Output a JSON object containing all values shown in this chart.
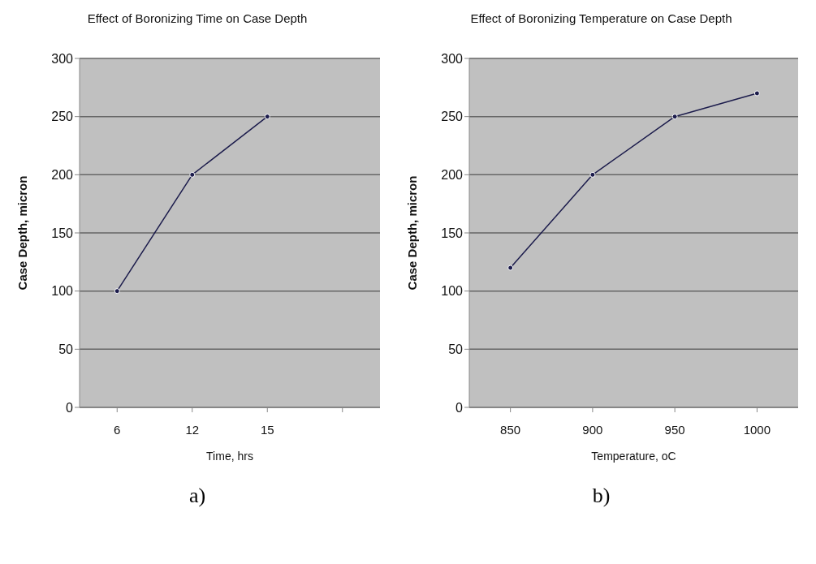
{
  "chart_data": [
    {
      "type": "line",
      "title": "Effect of Boronizing Time on Case Depth",
      "xlabel": "Time, hrs",
      "ylabel": "Case  Depth,  micron",
      "categories": [
        "6",
        "12",
        "15",
        null
      ],
      "values": [
        100,
        200,
        250,
        null
      ],
      "color": "#1c1c4c",
      "ylim": [
        0,
        300
      ],
      "yticks": [
        0,
        50,
        100,
        150,
        200,
        250,
        300
      ],
      "grid": "y",
      "marker": "circle",
      "annotations": [
        "a)"
      ]
    },
    {
      "type": "line",
      "title": "Effect of Boronizing Temperature on Case Depth",
      "xlabel": "Temperature, oC",
      "ylabel": "Case  Depth,  micron",
      "categories": [
        "850",
        "900",
        "950",
        "1000"
      ],
      "values": [
        120,
        200,
        250,
        270
      ],
      "color": "#1c1c4c",
      "ylim": [
        0,
        300
      ],
      "yticks": [
        0,
        50,
        100,
        150,
        200,
        250,
        300
      ],
      "grid": "y",
      "marker": "circle",
      "annotations": [
        "b)"
      ]
    }
  ]
}
